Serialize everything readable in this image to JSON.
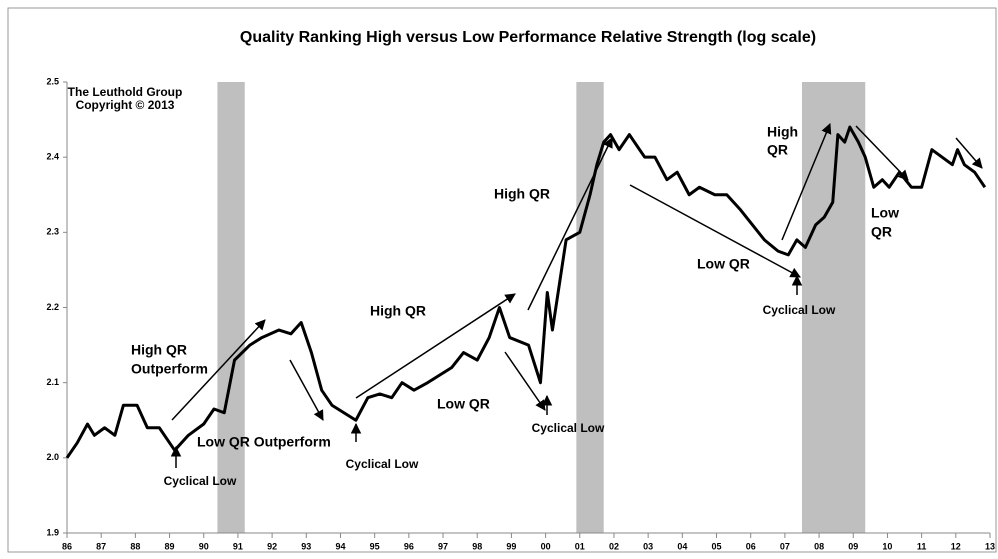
{
  "chart_data": {
    "type": "line",
    "title": "Quality Ranking High versus Low Performance Relative Strength (log scale)",
    "series": [
      {
        "color": "#000000",
        "x": [
          1986.0,
          1986.3,
          1986.6,
          1986.8,
          1987.1,
          1987.4,
          1987.65,
          1988.05,
          1988.35,
          1988.7,
          1989.0,
          1989.15,
          1989.55,
          1990.0,
          1990.3,
          1990.6,
          1990.9,
          1991.35,
          1991.7,
          1992.2,
          1992.55,
          1992.85,
          1993.15,
          1993.45,
          1993.75,
          1994.1,
          1994.45,
          1994.8,
          1995.15,
          1995.5,
          1995.8,
          1996.15,
          1996.55,
          1996.9,
          1997.25,
          1997.6,
          1998.0,
          1998.35,
          1998.65,
          1998.95,
          1999.5,
          1999.85,
          2000.05,
          2000.2,
          2000.6,
          2001.0,
          2001.3,
          2001.5,
          2001.7,
          2001.9,
          2002.15,
          2002.45,
          2002.9,
          2003.2,
          2003.55,
          2003.85,
          2004.2,
          2004.5,
          2004.95,
          2005.3,
          2005.7,
          2006.05,
          2006.4,
          2006.8,
          2007.1,
          2007.35,
          2007.6,
          2007.9,
          2008.15,
          2008.4,
          2008.55,
          2008.75,
          2008.9,
          2009.15,
          2009.35,
          2009.6,
          2009.85,
          2010.05,
          2010.35,
          2010.7,
          2011.0,
          2011.3,
          2011.6,
          2011.9,
          2012.05,
          2012.25,
          2012.55,
          2012.7,
          2012.85
        ],
        "values": [
          2.0,
          2.02,
          2.045,
          2.03,
          2.04,
          2.03,
          2.07,
          2.07,
          2.04,
          2.04,
          2.02,
          2.01,
          2.03,
          2.045,
          2.065,
          2.06,
          2.13,
          2.15,
          2.16,
          2.17,
          2.165,
          2.18,
          2.14,
          2.09,
          2.07,
          2.06,
          2.05,
          2.08,
          2.085,
          2.08,
          2.1,
          2.09,
          2.1,
          2.11,
          2.12,
          2.14,
          2.13,
          2.16,
          2.2,
          2.16,
          2.15,
          2.1,
          2.22,
          2.17,
          2.29,
          2.3,
          2.35,
          2.39,
          2.42,
          2.43,
          2.41,
          2.43,
          2.4,
          2.4,
          2.37,
          2.38,
          2.35,
          2.36,
          2.35,
          2.35,
          2.33,
          2.31,
          2.29,
          2.275,
          2.27,
          2.29,
          2.28,
          2.31,
          2.32,
          2.34,
          2.43,
          2.42,
          2.44,
          2.42,
          2.4,
          2.36,
          2.37,
          2.36,
          2.38,
          2.36,
          2.36,
          2.41,
          2.4,
          2.39,
          2.41,
          2.39,
          2.38,
          2.37,
          2.36
        ]
      }
    ],
    "shading": [
      [
        1990.4,
        1991.2
      ],
      [
        2000.9,
        2001.7
      ],
      [
        2007.5,
        2009.35
      ]
    ],
    "shading_color": "#bfbfbf",
    "xlim": [
      1986,
      2013
    ],
    "xticks": [
      {
        "value": 1986,
        "label": "86"
      },
      {
        "value": 1987,
        "label": "87"
      },
      {
        "value": 1988,
        "label": "88"
      },
      {
        "value": 1989,
        "label": "89"
      },
      {
        "value": 1990,
        "label": "90"
      },
      {
        "value": 1991,
        "label": "91"
      },
      {
        "value": 1992,
        "label": "92"
      },
      {
        "value": 1993,
        "label": "93"
      },
      {
        "value": 1994,
        "label": "94"
      },
      {
        "value": 1995,
        "label": "95"
      },
      {
        "value": 1996,
        "label": "96"
      },
      {
        "value": 1997,
        "label": "97"
      },
      {
        "value": 1998,
        "label": "98"
      },
      {
        "value": 1999,
        "label": "99"
      },
      {
        "value": 2000,
        "label": "00"
      },
      {
        "value": 2001,
        "label": "01"
      },
      {
        "value": 2002,
        "label": "02"
      },
      {
        "value": 2003,
        "label": "03"
      },
      {
        "value": 2004,
        "label": "04"
      },
      {
        "value": 2005,
        "label": "05"
      },
      {
        "value": 2006,
        "label": "06"
      },
      {
        "value": 2007,
        "label": "07"
      },
      {
        "value": 2008,
        "label": "08"
      },
      {
        "value": 2009,
        "label": "09"
      },
      {
        "value": 2010,
        "label": "10"
      },
      {
        "value": 2011,
        "label": "11"
      },
      {
        "value": 2012,
        "label": "12"
      },
      {
        "value": 2013,
        "label": "13"
      }
    ],
    "ylim": [
      1.9,
      2.5
    ],
    "yticks": [
      1.9,
      {
        "value": 2,
        "label": "2.0"
      },
      2.1,
      2.2,
      2.3,
      2.4,
      2.5
    ],
    "annotations": [
      "The Leuthold Group",
      "Copyright © 2013",
      "High QR",
      "Outperform",
      "Low QR Outperform",
      "Cyclical Low",
      "Cyclical Low",
      "Cyclical Low",
      "Cyclical Low",
      "High QR",
      "Low QR",
      "High QR",
      "Low QR",
      "High",
      "QR",
      "Low",
      "QR"
    ]
  }
}
